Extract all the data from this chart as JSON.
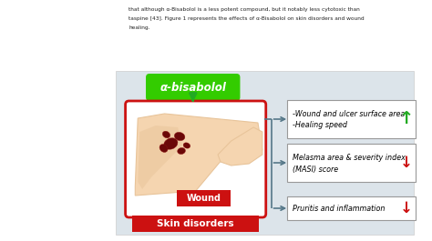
{
  "bg_outer": "#ffffff",
  "bg_inner": "#dce4ea",
  "text_top_color": "#333333",
  "title_text": "α-bisabolol",
  "title_bg": "#33cc00",
  "title_text_color": "white",
  "wound_label": "Wound",
  "wound_bg": "#cc1111",
  "skin_label": "Skin disorders",
  "skin_bg": "#cc1111",
  "box1_line1": "-Wound and ulcer surface area",
  "box1_line2": "-Healing speed",
  "box1_arrow": "↑",
  "box1_arrow_color": "#22aa22",
  "box2_line1": "Melasma area & severity index",
  "box2_line2": "(MASI) score",
  "box2_arrow": "↓",
  "box2_arrow_color": "#cc1111",
  "box3_text": "Pruritis and inflammation",
  "box3_arrow": "↓",
  "box3_arrow_color": "#cc1111",
  "connector_color": "#557788",
  "box_bg": "white",
  "box_border": "#999999",
  "green_arrow_color": "#22aa22",
  "left_panel_border": "#cc1111",
  "left_panel_bg": "white",
  "arm_skin": "#f5d5b0",
  "arm_skin2": "#e8c49a",
  "wound_dark": "#6b0808",
  "wound_mid": "#8b1010"
}
